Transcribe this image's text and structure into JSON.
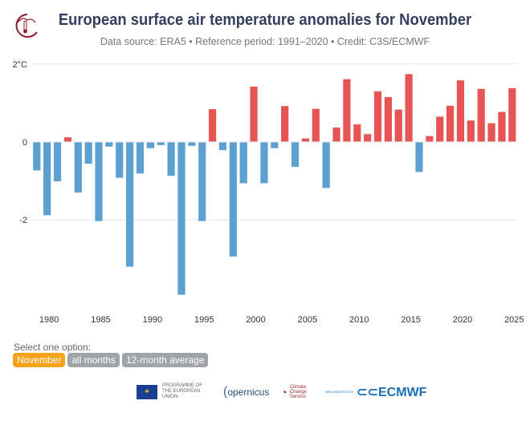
{
  "header": {
    "title": "European surface air temperature anomalies for November",
    "subtitle": "Data source: ERA5 • Reference period: 1991–2020 • Credit: C3S/ECMWF"
  },
  "controls": {
    "label": "Select one option:",
    "options": [
      {
        "label": "November",
        "active": true
      },
      {
        "label": "all months",
        "active": false
      },
      {
        "label": "12-month average",
        "active": false
      }
    ]
  },
  "footer": {
    "eu_text": "PROGRAMME OF THE EUROPEAN UNION",
    "copernicus": "opernicus",
    "cds": "Climate Change Service",
    "sponsor": "IMPLEMENTED BY",
    "ecmwf": "ECMWF"
  },
  "colors": {
    "positive": "#e65454",
    "negative": "#5ba0d0",
    "title": "#333f5e",
    "active_option": "#f7a21b"
  },
  "chart_data": {
    "type": "bar",
    "title": "European surface air temperature anomalies for November",
    "xlabel": "",
    "ylabel": "",
    "unit": "°C",
    "ylim": [
      -4,
      2
    ],
    "yticks": [
      {
        "value": 2,
        "label": "2°C"
      },
      {
        "value": 0,
        "label": "0"
      },
      {
        "value": -2,
        "label": "-2"
      }
    ],
    "xticks": [
      "1980",
      "1985",
      "1990",
      "1995",
      "2000",
      "2005",
      "2010",
      "2015",
      "2020",
      "2025"
    ],
    "grid": true,
    "legend": "none",
    "categories": [
      1979,
      1980,
      1981,
      1982,
      1983,
      1984,
      1985,
      1986,
      1987,
      1988,
      1989,
      1990,
      1991,
      1992,
      1993,
      1994,
      1995,
      1996,
      1997,
      1998,
      1999,
      2000,
      2001,
      2002,
      2003,
      2004,
      2005,
      2006,
      2007,
      2008,
      2009,
      2010,
      2011,
      2012,
      2013,
      2014,
      2015,
      2016,
      2017,
      2018,
      2019,
      2020,
      2021,
      2022,
      2023,
      2024,
      2025
    ],
    "values": [
      -0.73,
      -1.88,
      -1.01,
      0.12,
      -1.3,
      -0.56,
      -2.03,
      -0.12,
      -0.92,
      -3.2,
      -0.81,
      -0.16,
      -0.08,
      -0.87,
      -3.92,
      -0.1,
      -2.03,
      0.84,
      -0.21,
      -2.94,
      -1.06,
      1.42,
      -1.06,
      -0.16,
      0.92,
      -0.64,
      0.09,
      0.85,
      -1.18,
      0.37,
      1.61,
      0.45,
      0.2,
      1.3,
      1.15,
      0.83,
      1.74,
      -0.77,
      0.15,
      0.65,
      0.93,
      1.58,
      0.55,
      1.36,
      0.48,
      0.77,
      1.38
    ]
  }
}
